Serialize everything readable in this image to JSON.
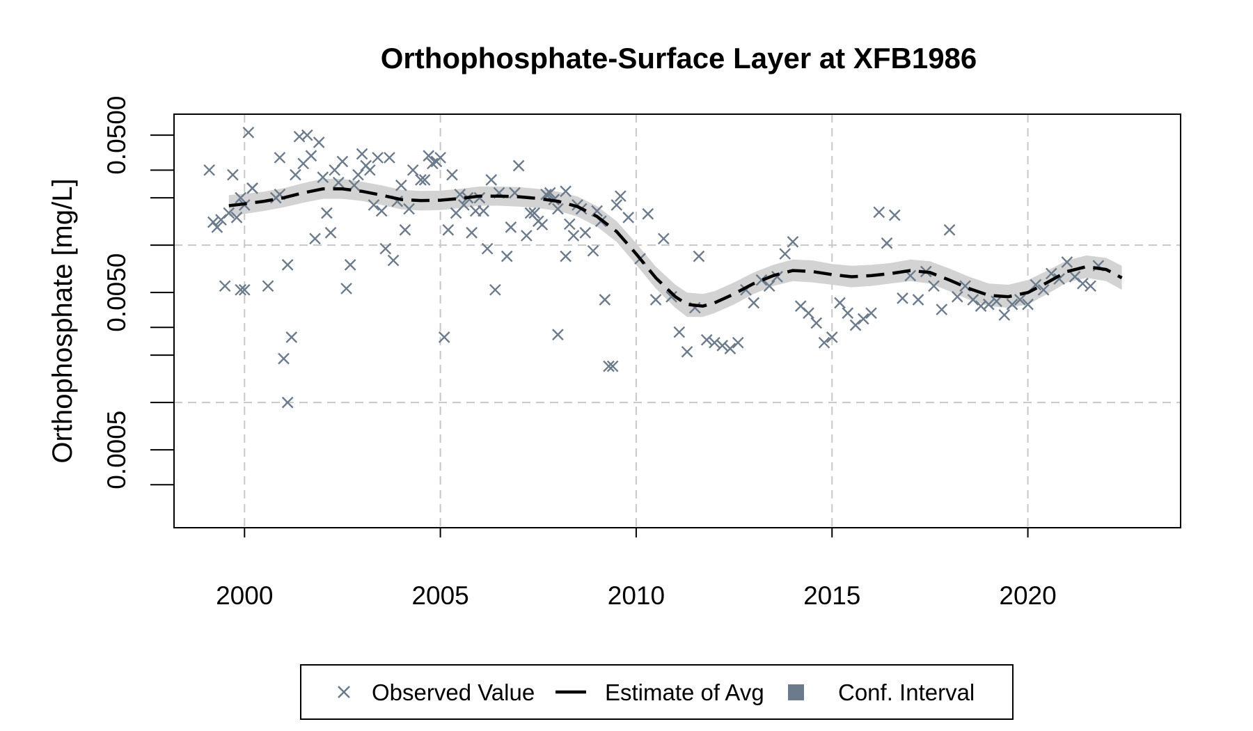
{
  "chart_data": {
    "type": "scatter",
    "title": "Orthophosphate-Surface Layer at XFB1986",
    "xlabel": "",
    "ylabel": "Orthophosphate [mg/L]",
    "x_scale": "linear",
    "y_scale": "log10",
    "xlim": [
      1998.2,
      2023.9
    ],
    "ylim": [
      0.00016,
      0.068
    ],
    "x_ticks": [
      {
        "value": 2000,
        "label": "2000"
      },
      {
        "value": 2005,
        "label": "2005"
      },
      {
        "value": 2010,
        "label": "2010"
      },
      {
        "value": 2015,
        "label": "2015"
      },
      {
        "value": 2020,
        "label": "2020"
      }
    ],
    "y_ticks": [
      0.0003,
      0.0005,
      0.001,
      0.002,
      0.003,
      0.005,
      0.01,
      0.02,
      0.03,
      0.05
    ],
    "y_tick_labels": [
      {
        "value": 0.0005,
        "label": "0.0005"
      },
      {
        "value": 0.005,
        "label": "0.0050"
      },
      {
        "value": 0.05,
        "label": "0.0500"
      }
    ],
    "grid": true,
    "grid_y": [
      0.001,
      0.01
    ],
    "legend_position": "bottom",
    "colors": {
      "observed": "#6c7b8b",
      "estimate": "#000000",
      "conf_interval": "#d3d3d3",
      "legend_conf_swatch": "#6c7b8b",
      "grid": "#c8c8c8"
    },
    "series": [
      {
        "name": "Observed Value",
        "kind": "scatter",
        "marker": "x",
        "points": [
          [
            1999.1,
            0.03
          ],
          [
            1999.2,
            0.014
          ],
          [
            1999.3,
            0.013
          ],
          [
            1999.4,
            0.0145
          ],
          [
            1999.5,
            0.0055
          ],
          [
            1999.6,
            0.016
          ],
          [
            1999.7,
            0.028
          ],
          [
            1999.8,
            0.015
          ],
          [
            1999.9,
            0.02
          ],
          [
            1999.9,
            0.0052
          ],
          [
            2000.0,
            0.0052
          ],
          [
            2000.0,
            0.018
          ],
          [
            2000.1,
            0.052
          ],
          [
            2000.2,
            0.023
          ],
          [
            2000.2,
            0.023
          ],
          [
            2000.6,
            0.0055
          ],
          [
            2000.8,
            0.02
          ],
          [
            2000.9,
            0.036
          ],
          [
            2000.9,
            0.021
          ],
          [
            2001.0,
            0.0019
          ],
          [
            2001.1,
            0.0075
          ],
          [
            2001.1,
            0.001
          ],
          [
            2001.2,
            0.0026
          ],
          [
            2001.3,
            0.028
          ],
          [
            2001.4,
            0.049
          ],
          [
            2001.5,
            0.033
          ],
          [
            2001.6,
            0.05
          ],
          [
            2001.7,
            0.037
          ],
          [
            2001.8,
            0.011
          ],
          [
            2001.9,
            0.045
          ],
          [
            2002.0,
            0.027
          ],
          [
            2002.1,
            0.016
          ],
          [
            2002.2,
            0.012
          ],
          [
            2002.3,
            0.03
          ],
          [
            2002.4,
            0.025
          ],
          [
            2002.5,
            0.034
          ],
          [
            2002.6,
            0.0053
          ],
          [
            2002.7,
            0.0075
          ],
          [
            2002.8,
            0.024
          ],
          [
            2002.9,
            0.028
          ],
          [
            2003.0,
            0.038
          ],
          [
            2003.1,
            0.032
          ],
          [
            2003.2,
            0.03
          ],
          [
            2003.3,
            0.018
          ],
          [
            2003.4,
            0.036
          ],
          [
            2003.5,
            0.0165
          ],
          [
            2003.6,
            0.0095
          ],
          [
            2003.7,
            0.036
          ],
          [
            2003.8,
            0.008
          ],
          [
            2003.9,
            0.019
          ],
          [
            2004.0,
            0.024
          ],
          [
            2004.1,
            0.0125
          ],
          [
            2004.2,
            0.017
          ],
          [
            2004.3,
            0.03
          ],
          [
            2004.5,
            0.026
          ],
          [
            2004.6,
            0.026
          ],
          [
            2004.7,
            0.037
          ],
          [
            2004.8,
            0.033
          ],
          [
            2004.9,
            0.034
          ],
          [
            2005.0,
            0.036
          ],
          [
            2005.1,
            0.0026
          ],
          [
            2005.2,
            0.0125
          ],
          [
            2005.3,
            0.028
          ],
          [
            2005.4,
            0.016
          ],
          [
            2005.5,
            0.021
          ],
          [
            2005.6,
            0.018
          ],
          [
            2005.7,
            0.02
          ],
          [
            2005.8,
            0.012
          ],
          [
            2005.9,
            0.0165
          ],
          [
            2006.0,
            0.02
          ],
          [
            2006.1,
            0.0165
          ],
          [
            2006.2,
            0.0095
          ],
          [
            2006.3,
            0.026
          ],
          [
            2006.4,
            0.0052
          ],
          [
            2006.5,
            0.0215
          ],
          [
            2006.7,
            0.0085
          ],
          [
            2006.8,
            0.013
          ],
          [
            2006.9,
            0.0215
          ],
          [
            2007.0,
            0.032
          ],
          [
            2007.2,
            0.0115
          ],
          [
            2007.3,
            0.016
          ],
          [
            2007.4,
            0.016
          ],
          [
            2007.5,
            0.0142
          ],
          [
            2007.6,
            0.0135
          ],
          [
            2007.7,
            0.021
          ],
          [
            2007.8,
            0.0215
          ],
          [
            2007.9,
            0.0195
          ],
          [
            2008.0,
            0.017
          ],
          [
            2008.2,
            0.022
          ],
          [
            2008.3,
            0.0136
          ],
          [
            2008.0,
            0.0027
          ],
          [
            2008.2,
            0.0085
          ],
          [
            2008.4,
            0.0115
          ],
          [
            2008.5,
            0.018
          ],
          [
            2008.6,
            0.017
          ],
          [
            2008.7,
            0.012
          ],
          [
            2008.9,
            0.0092
          ],
          [
            2009.0,
            0.0165
          ],
          [
            2009.1,
            0.0142
          ],
          [
            2009.2,
            0.0045
          ],
          [
            2009.3,
            0.0017
          ],
          [
            2009.4,
            0.0017
          ],
          [
            2009.5,
            0.018
          ],
          [
            2009.6,
            0.0205
          ],
          [
            2009.8,
            0.015
          ],
          [
            2010.1,
            0.0082
          ],
          [
            2010.3,
            0.0158
          ],
          [
            2010.5,
            0.0045
          ],
          [
            2010.7,
            0.011
          ],
          [
            2010.9,
            0.0047
          ],
          [
            2011.1,
            0.0028
          ],
          [
            2011.3,
            0.0021
          ],
          [
            2011.5,
            0.004
          ],
          [
            2011.6,
            0.0085
          ],
          [
            2011.8,
            0.0025
          ],
          [
            2012.0,
            0.0024
          ],
          [
            2012.2,
            0.0023
          ],
          [
            2012.4,
            0.0022
          ],
          [
            2012.6,
            0.0024
          ],
          [
            2012.8,
            0.0052
          ],
          [
            2013.0,
            0.0043
          ],
          [
            2013.2,
            0.006
          ],
          [
            2013.4,
            0.0055
          ],
          [
            2013.6,
            0.0063
          ],
          [
            2013.8,
            0.0088
          ],
          [
            2014.0,
            0.0105
          ],
          [
            2014.2,
            0.0041
          ],
          [
            2014.4,
            0.0037
          ],
          [
            2014.6,
            0.0032
          ],
          [
            2014.8,
            0.0024
          ],
          [
            2015.0,
            0.0026
          ],
          [
            2015.2,
            0.0043
          ],
          [
            2015.4,
            0.0037
          ],
          [
            2015.6,
            0.0031
          ],
          [
            2015.8,
            0.0034
          ],
          [
            2016.0,
            0.0037
          ],
          [
            2016.2,
            0.0162
          ],
          [
            2016.4,
            0.0103
          ],
          [
            2016.6,
            0.0155
          ],
          [
            2016.8,
            0.0046
          ],
          [
            2017.0,
            0.0064
          ],
          [
            2017.2,
            0.0045
          ],
          [
            2017.4,
            0.0068
          ],
          [
            2017.6,
            0.0055
          ],
          [
            2017.8,
            0.0039
          ],
          [
            2018.0,
            0.0125
          ],
          [
            2018.2,
            0.0047
          ],
          [
            2018.4,
            0.0055
          ],
          [
            2018.6,
            0.0045
          ],
          [
            2018.8,
            0.0041
          ],
          [
            2019.0,
            0.0042
          ],
          [
            2019.2,
            0.0044
          ],
          [
            2019.4,
            0.0036
          ],
          [
            2019.6,
            0.0042
          ],
          [
            2019.8,
            0.0045
          ],
          [
            2020.0,
            0.0042
          ],
          [
            2020.2,
            0.0056
          ],
          [
            2020.4,
            0.0052
          ],
          [
            2020.6,
            0.0066
          ],
          [
            2020.8,
            0.0061
          ],
          [
            2021.0,
            0.0078
          ],
          [
            2021.2,
            0.0063
          ],
          [
            2021.4,
            0.0057
          ],
          [
            2021.6,
            0.0055
          ],
          [
            2021.8,
            0.0074
          ]
        ]
      },
      {
        "name": "Estimate of Avg",
        "kind": "line",
        "dash": true,
        "points": [
          [
            1999.6,
            0.0178
          ],
          [
            2000.0,
            0.0183
          ],
          [
            2000.5,
            0.019
          ],
          [
            2001.0,
            0.02
          ],
          [
            2001.5,
            0.0215
          ],
          [
            2002.0,
            0.0228
          ],
          [
            2002.5,
            0.0228
          ],
          [
            2003.0,
            0.022
          ],
          [
            2003.5,
            0.0208
          ],
          [
            2004.0,
            0.0195
          ],
          [
            2004.5,
            0.0192
          ],
          [
            2005.0,
            0.0193
          ],
          [
            2005.5,
            0.0198
          ],
          [
            2006.0,
            0.0205
          ],
          [
            2006.5,
            0.0205
          ],
          [
            2007.0,
            0.0203
          ],
          [
            2007.5,
            0.0198
          ],
          [
            2008.0,
            0.019
          ],
          [
            2008.5,
            0.0176
          ],
          [
            2009.0,
            0.0152
          ],
          [
            2009.5,
            0.0122
          ],
          [
            2010.0,
            0.0088
          ],
          [
            2010.5,
            0.0062
          ],
          [
            2011.0,
            0.0047
          ],
          [
            2011.3,
            0.0042
          ],
          [
            2011.7,
            0.0041
          ],
          [
            2012.0,
            0.0043
          ],
          [
            2012.5,
            0.0049
          ],
          [
            2013.0,
            0.0057
          ],
          [
            2013.5,
            0.0064
          ],
          [
            2014.0,
            0.0069
          ],
          [
            2014.5,
            0.0068
          ],
          [
            2015.0,
            0.0065
          ],
          [
            2015.5,
            0.0063
          ],
          [
            2016.0,
            0.0064
          ],
          [
            2016.5,
            0.0066
          ],
          [
            2017.0,
            0.0069
          ],
          [
            2017.5,
            0.0067
          ],
          [
            2018.0,
            0.006
          ],
          [
            2018.5,
            0.0053
          ],
          [
            2019.0,
            0.0048
          ],
          [
            2019.5,
            0.0047
          ],
          [
            2020.0,
            0.005
          ],
          [
            2020.5,
            0.0058
          ],
          [
            2021.0,
            0.0068
          ],
          [
            2021.5,
            0.0073
          ],
          [
            2022.0,
            0.007
          ],
          [
            2022.4,
            0.0062
          ]
        ]
      },
      {
        "name": "Conf. Interval",
        "kind": "band",
        "points": [
          [
            1999.6,
            0.0152,
            0.0208
          ],
          [
            2000.0,
            0.0158,
            0.0212
          ],
          [
            2000.5,
            0.0165,
            0.0219
          ],
          [
            2001.0,
            0.0174,
            0.023
          ],
          [
            2001.5,
            0.0186,
            0.0248
          ],
          [
            2002.0,
            0.0197,
            0.0264
          ],
          [
            2002.5,
            0.0197,
            0.0264
          ],
          [
            2003.0,
            0.0191,
            0.0253
          ],
          [
            2003.5,
            0.018,
            0.024
          ],
          [
            2004.0,
            0.0169,
            0.0225
          ],
          [
            2004.5,
            0.0166,
            0.0221
          ],
          [
            2005.0,
            0.0167,
            0.0222
          ],
          [
            2005.5,
            0.0172,
            0.0228
          ],
          [
            2006.0,
            0.0178,
            0.0236
          ],
          [
            2006.5,
            0.0178,
            0.0236
          ],
          [
            2007.0,
            0.0176,
            0.0234
          ],
          [
            2007.5,
            0.0172,
            0.0228
          ],
          [
            2008.0,
            0.0165,
            0.0219
          ],
          [
            2008.5,
            0.0152,
            0.0204
          ],
          [
            2009.0,
            0.0131,
            0.0177
          ],
          [
            2009.5,
            0.0105,
            0.0142
          ],
          [
            2010.0,
            0.0075,
            0.0103
          ],
          [
            2010.5,
            0.0053,
            0.0073
          ],
          [
            2011.0,
            0.004,
            0.0056
          ],
          [
            2011.3,
            0.0035,
            0.005
          ],
          [
            2011.7,
            0.0035,
            0.0049
          ],
          [
            2012.0,
            0.0037,
            0.0051
          ],
          [
            2012.5,
            0.0042,
            0.0058
          ],
          [
            2013.0,
            0.0049,
            0.0067
          ],
          [
            2013.5,
            0.0055,
            0.0075
          ],
          [
            2014.0,
            0.0059,
            0.0081
          ],
          [
            2014.5,
            0.0058,
            0.008
          ],
          [
            2015.0,
            0.0056,
            0.0076
          ],
          [
            2015.5,
            0.0054,
            0.0074
          ],
          [
            2016.0,
            0.0055,
            0.0075
          ],
          [
            2016.5,
            0.0057,
            0.0077
          ],
          [
            2017.0,
            0.0059,
            0.0081
          ],
          [
            2017.5,
            0.0057,
            0.0079
          ],
          [
            2018.0,
            0.0051,
            0.0071
          ],
          [
            2018.5,
            0.0045,
            0.0063
          ],
          [
            2019.0,
            0.0041,
            0.0057
          ],
          [
            2019.5,
            0.004,
            0.0056
          ],
          [
            2020.0,
            0.0042,
            0.006
          ],
          [
            2020.5,
            0.0049,
            0.0069
          ],
          [
            2021.0,
            0.0058,
            0.008
          ],
          [
            2021.5,
            0.0062,
            0.0086
          ],
          [
            2022.0,
            0.0059,
            0.0083
          ],
          [
            2022.4,
            0.0052,
            0.0074
          ]
        ]
      }
    ],
    "legend": [
      {
        "label": "Observed Value",
        "kind": "marker"
      },
      {
        "label": "Estimate of Avg",
        "kind": "line"
      },
      {
        "label": "Conf. Interval",
        "kind": "swatch"
      }
    ]
  }
}
